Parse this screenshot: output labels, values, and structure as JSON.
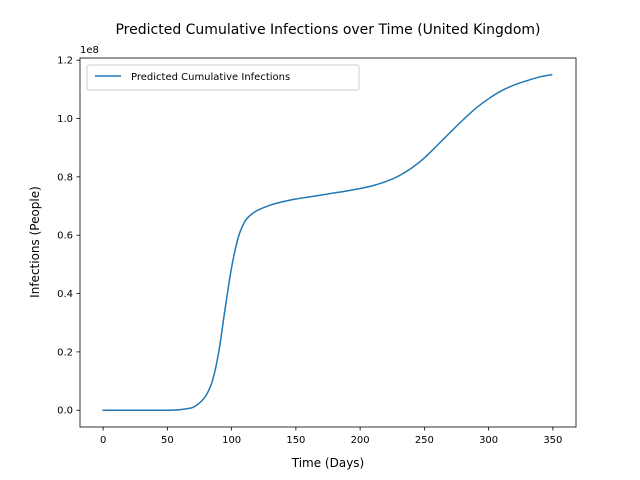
{
  "chart_data": {
    "type": "line",
    "title": "Predicted Cumulative Infections over Time (United Kingdom)",
    "xlabel": "Time (Days)",
    "ylabel": "Infections (People)",
    "y_offset_text": "1e8",
    "xlim": [
      -18,
      368
    ],
    "ylim": [
      -5750000,
      120750000
    ],
    "y_multiplier": 100000000,
    "xticks": [
      0,
      50,
      100,
      150,
      200,
      250,
      300,
      350
    ],
    "xtick_labels": [
      "0",
      "50",
      "100",
      "150",
      "200",
      "250",
      "300",
      "350"
    ],
    "yticks": [
      0,
      20000000,
      40000000,
      60000000,
      80000000,
      100000000,
      120000000
    ],
    "ytick_labels": [
      "0.0",
      "0.2",
      "0.4",
      "0.6",
      "0.8",
      "1.0",
      "1.2"
    ],
    "grid": false,
    "legend_position": "upper left",
    "series": [
      {
        "name": "Predicted Cumulative Infections",
        "color": "#1f77b4",
        "x": [
          0,
          20,
          40,
          55,
          60,
          65,
          70,
          75,
          80,
          85,
          90,
          95,
          100,
          105,
          110,
          115,
          120,
          130,
          140,
          150,
          160,
          170,
          180,
          190,
          200,
          210,
          220,
          230,
          240,
          250,
          260,
          270,
          280,
          290,
          300,
          310,
          320,
          330,
          340,
          349
        ],
        "y": [
          0,
          0,
          0,
          50000,
          200000,
          500000,
          1000000,
          2500000,
          5000000,
          10000000,
          20000000,
          35000000,
          49000000,
          59000000,
          64500000,
          67000000,
          68500000,
          70300000,
          71500000,
          72400000,
          73100000,
          73800000,
          74500000,
          75200000,
          76000000,
          77000000,
          78400000,
          80300000,
          83000000,
          86500000,
          90800000,
          95200000,
          99500000,
          103500000,
          106800000,
          109500000,
          111500000,
          113000000,
          114300000,
          115000000
        ]
      }
    ]
  }
}
